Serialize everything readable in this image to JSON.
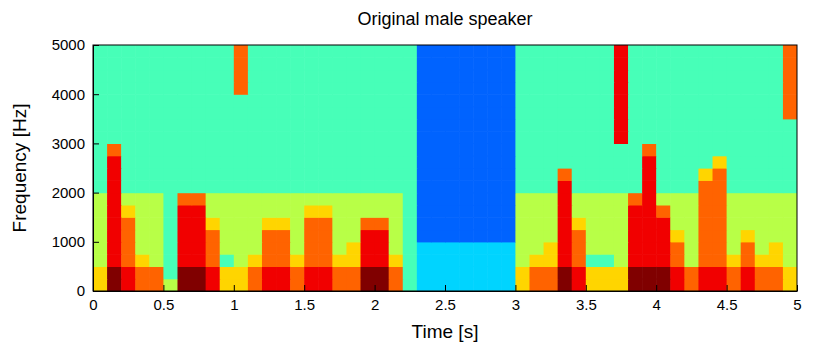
{
  "chart_data": {
    "type": "heatmap",
    "title": "Original male speaker",
    "x_label": "Time [s]",
    "y_label": "Frequency [Hz]",
    "xlim": [
      0,
      5
    ],
    "ylim": [
      0,
      5000
    ],
    "xticks": [
      0,
      0.5,
      1,
      1.5,
      2,
      2.5,
      3,
      3.5,
      4,
      4.5,
      5
    ],
    "yticks": [
      0,
      1000,
      2000,
      3000,
      4000,
      5000
    ],
    "color": "jet",
    "zlim": [
      0,
      9
    ],
    "z": [
      [
        6,
        9,
        8,
        7,
        7,
        5,
        9,
        9,
        8,
        6,
        6,
        7,
        8,
        8,
        7,
        8,
        8,
        7,
        7,
        9,
        9,
        7,
        4,
        3,
        3,
        3,
        3,
        3,
        3,
        3,
        6,
        7,
        7,
        9,
        8,
        6,
        6,
        6,
        9,
        9,
        9,
        8,
        7,
        8,
        8,
        7,
        8,
        7,
        7,
        6
      ],
      [
        6,
        9,
        8,
        7,
        7,
        4,
        9,
        9,
        8,
        6,
        6,
        7,
        8,
        8,
        7,
        8,
        8,
        7,
        7,
        9,
        9,
        7,
        4,
        3,
        3,
        3,
        3,
        3,
        3,
        3,
        6,
        7,
        7,
        9,
        8,
        6,
        6,
        6,
        9,
        9,
        9,
        8,
        7,
        8,
        8,
        7,
        8,
        7,
        7,
        6
      ],
      [
        5,
        8,
        7,
        6,
        5,
        4,
        8,
        8,
        7,
        4,
        5,
        6,
        7,
        7,
        6,
        7,
        7,
        6,
        6,
        8,
        8,
        6,
        4,
        3,
        3,
        3,
        3,
        3,
        3,
        3,
        5,
        6,
        6,
        8,
        7,
        4,
        4,
        5,
        8,
        8,
        8,
        7,
        5,
        7,
        7,
        6,
        7,
        6,
        6,
        5
      ],
      [
        5,
        8,
        7,
        5,
        5,
        4,
        8,
        8,
        7,
        5,
        5,
        5,
        7,
        7,
        5,
        7,
        7,
        5,
        6,
        8,
        8,
        5,
        4,
        3,
        3,
        3,
        3,
        3,
        3,
        3,
        5,
        5,
        6,
        8,
        7,
        5,
        5,
        5,
        8,
        8,
        8,
        7,
        5,
        7,
        7,
        5,
        7,
        5,
        6,
        5
      ],
      [
        5,
        8,
        7,
        5,
        5,
        4,
        8,
        8,
        7,
        5,
        5,
        5,
        7,
        7,
        5,
        7,
        7,
        5,
        5,
        8,
        8,
        5,
        4,
        2,
        2,
        2,
        2,
        2,
        2,
        2,
        5,
        5,
        5,
        8,
        7,
        5,
        5,
        5,
        8,
        8,
        8,
        6,
        5,
        7,
        7,
        5,
        6,
        5,
        5,
        5
      ],
      [
        5,
        8,
        7,
        5,
        5,
        4,
        8,
        8,
        6,
        5,
        5,
        5,
        6,
        6,
        5,
        7,
        7,
        5,
        5,
        7,
        7,
        5,
        4,
        2,
        2,
        2,
        2,
        2,
        2,
        2,
        5,
        5,
        5,
        8,
        6,
        5,
        5,
        5,
        8,
        8,
        8,
        5,
        5,
        7,
        7,
        5,
        5,
        5,
        5,
        5
      ],
      [
        5,
        8,
        6,
        5,
        5,
        4,
        8,
        8,
        5,
        5,
        5,
        5,
        5,
        5,
        5,
        6,
        6,
        5,
        5,
        5,
        5,
        5,
        4,
        2,
        2,
        2,
        2,
        2,
        2,
        2,
        5,
        5,
        5,
        8,
        5,
        5,
        5,
        5,
        8,
        8,
        7,
        5,
        5,
        7,
        7,
        5,
        5,
        5,
        5,
        5
      ],
      [
        5,
        8,
        5,
        5,
        5,
        4,
        7,
        7,
        5,
        5,
        5,
        5,
        5,
        5,
        5,
        5,
        5,
        5,
        5,
        5,
        5,
        5,
        4,
        2,
        2,
        2,
        2,
        2,
        2,
        2,
        5,
        5,
        5,
        8,
        5,
        5,
        5,
        5,
        7,
        8,
        5,
        5,
        5,
        7,
        7,
        5,
        5,
        5,
        5,
        5
      ],
      [
        4,
        8,
        4,
        4,
        4,
        4,
        4,
        4,
        4,
        4,
        4,
        4,
        4,
        4,
        4,
        4,
        4,
        4,
        4,
        4,
        4,
        4,
        4,
        2,
        2,
        2,
        2,
        2,
        2,
        2,
        4,
        4,
        4,
        8,
        4,
        4,
        4,
        4,
        4,
        8,
        4,
        4,
        4,
        7,
        7,
        4,
        4,
        4,
        4,
        4
      ],
      [
        4,
        8,
        4,
        4,
        4,
        4,
        4,
        4,
        4,
        4,
        4,
        4,
        4,
        4,
        4,
        4,
        4,
        4,
        4,
        4,
        4,
        4,
        4,
        2,
        2,
        2,
        2,
        2,
        2,
        2,
        4,
        4,
        4,
        7,
        4,
        4,
        4,
        4,
        4,
        8,
        4,
        4,
        4,
        6,
        7,
        4,
        4,
        4,
        4,
        4
      ],
      [
        4,
        8,
        4,
        4,
        4,
        4,
        4,
        4,
        4,
        4,
        4,
        4,
        4,
        4,
        4,
        4,
        4,
        4,
        4,
        4,
        4,
        4,
        4,
        2,
        2,
        2,
        2,
        2,
        2,
        2,
        4,
        4,
        4,
        4,
        4,
        4,
        4,
        4,
        4,
        8,
        4,
        4,
        4,
        4,
        6,
        4,
        4,
        4,
        4,
        4
      ],
      [
        4,
        7,
        4,
        4,
        4,
        4,
        4,
        4,
        4,
        4,
        4,
        4,
        4,
        4,
        4,
        4,
        4,
        4,
        4,
        4,
        4,
        4,
        4,
        2,
        2,
        2,
        2,
        2,
        2,
        2,
        4,
        4,
        4,
        4,
        4,
        4,
        4,
        4,
        4,
        7,
        4,
        4,
        4,
        4,
        4,
        4,
        4,
        4,
        4,
        4
      ],
      [
        4,
        4,
        4,
        4,
        4,
        4,
        4,
        4,
        4,
        4,
        4,
        4,
        4,
        4,
        4,
        4,
        4,
        4,
        4,
        4,
        4,
        4,
        4,
        2,
        2,
        2,
        2,
        2,
        2,
        2,
        4,
        4,
        4,
        4,
        4,
        4,
        4,
        8,
        4,
        4,
        4,
        4,
        4,
        4,
        4,
        4,
        4,
        4,
        4,
        4
      ],
      [
        4,
        4,
        4,
        4,
        4,
        4,
        4,
        4,
        4,
        4,
        4,
        4,
        4,
        4,
        4,
        4,
        4,
        4,
        4,
        4,
        4,
        4,
        4,
        2,
        2,
        2,
        2,
        2,
        2,
        2,
        4,
        4,
        4,
        4,
        4,
        4,
        4,
        8,
        4,
        4,
        4,
        4,
        4,
        4,
        4,
        4,
        4,
        4,
        4,
        4
      ],
      [
        4,
        4,
        4,
        4,
        4,
        4,
        4,
        4,
        4,
        4,
        4,
        4,
        4,
        4,
        4,
        4,
        4,
        4,
        4,
        4,
        4,
        4,
        4,
        2,
        2,
        2,
        2,
        2,
        2,
        2,
        4,
        4,
        4,
        4,
        4,
        4,
        4,
        8,
        4,
        4,
        4,
        4,
        4,
        4,
        4,
        4,
        4,
        4,
        4,
        7
      ],
      [
        4,
        4,
        4,
        4,
        4,
        4,
        4,
        4,
        4,
        4,
        4,
        4,
        4,
        4,
        4,
        4,
        4,
        4,
        4,
        4,
        4,
        4,
        4,
        2,
        2,
        2,
        2,
        2,
        2,
        2,
        4,
        4,
        4,
        4,
        4,
        4,
        4,
        8,
        4,
        4,
        4,
        4,
        4,
        4,
        4,
        4,
        4,
        4,
        4,
        7
      ],
      [
        4,
        4,
        4,
        4,
        4,
        4,
        4,
        4,
        4,
        4,
        7,
        4,
        4,
        4,
        4,
        4,
        4,
        4,
        4,
        4,
        4,
        4,
        4,
        2,
        2,
        2,
        2,
        2,
        2,
        2,
        4,
        4,
        4,
        4,
        4,
        4,
        4,
        8,
        4,
        4,
        4,
        4,
        4,
        4,
        4,
        4,
        4,
        4,
        4,
        7
      ],
      [
        4,
        4,
        4,
        4,
        4,
        4,
        4,
        4,
        4,
        4,
        7,
        4,
        4,
        4,
        4,
        4,
        4,
        4,
        4,
        4,
        4,
        4,
        4,
        2,
        2,
        2,
        2,
        2,
        2,
        2,
        4,
        4,
        4,
        4,
        4,
        4,
        4,
        8,
        4,
        4,
        4,
        4,
        4,
        4,
        4,
        4,
        4,
        4,
        4,
        7
      ],
      [
        4,
        4,
        4,
        4,
        4,
        4,
        4,
        4,
        4,
        4,
        7,
        4,
        4,
        4,
        4,
        4,
        4,
        4,
        4,
        4,
        4,
        4,
        4,
        2,
        2,
        2,
        2,
        2,
        2,
        2,
        4,
        4,
        4,
        4,
        4,
        4,
        4,
        8,
        4,
        4,
        4,
        4,
        4,
        4,
        4,
        4,
        4,
        4,
        4,
        7
      ],
      [
        4,
        4,
        4,
        4,
        4,
        4,
        4,
        4,
        4,
        4,
        7,
        4,
        4,
        4,
        4,
        4,
        4,
        4,
        4,
        4,
        4,
        4,
        4,
        2,
        2,
        2,
        2,
        2,
        2,
        2,
        4,
        4,
        4,
        4,
        4,
        4,
        4,
        8,
        4,
        4,
        4,
        4,
        4,
        4,
        4,
        4,
        4,
        4,
        4,
        7
      ]
    ]
  }
}
